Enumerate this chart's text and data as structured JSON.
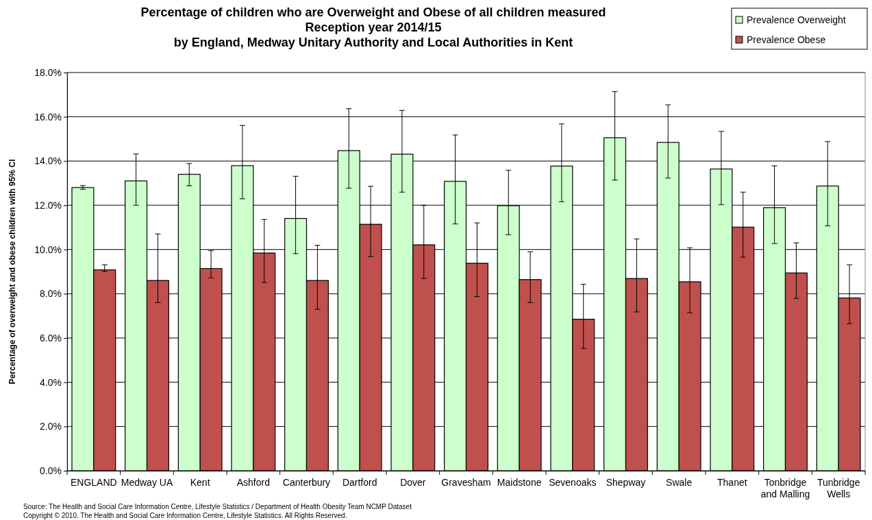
{
  "chart_data": {
    "type": "bar",
    "title": "Percentage of children who are Overweight and Obese of all children measured\nReception year 2014/15\nby England, Medway Unitary Authority and Local Authorities in Kent",
    "ylabel": "Percentage of overweight and obese children with 95% CI",
    "categories": [
      "ENGLAND",
      "Medway UA",
      "Kent",
      "Ashford",
      "Canterbury",
      "Dartford",
      "Dover",
      "Gravesham",
      "Maidstone",
      "Sevenoaks",
      "Shepway",
      "Swale",
      "Thanet",
      "Tonbridge and Malling",
      "Tunbridge Wells"
    ],
    "series": [
      {
        "name": "Prevalence Overweight",
        "color": "#ccffcc",
        "values": [
          12.8,
          13.1,
          13.4,
          13.79,
          11.4,
          14.47,
          14.31,
          13.08,
          11.98,
          13.77,
          15.05,
          14.84,
          13.64,
          11.89,
          12.87
        ],
        "errors": [
          [
            12.72,
            12.89
          ],
          [
            12.0,
            14.32
          ],
          [
            12.88,
            13.89
          ],
          [
            12.29,
            15.61
          ],
          [
            9.81,
            13.31
          ],
          [
            12.77,
            16.37
          ],
          [
            12.59,
            16.29
          ],
          [
            11.16,
            15.18
          ],
          [
            10.67,
            13.58
          ],
          [
            12.16,
            15.68
          ],
          [
            13.14,
            17.14
          ],
          [
            13.23,
            16.54
          ],
          [
            12.03,
            15.34
          ],
          [
            10.27,
            13.78
          ],
          [
            11.07,
            14.88
          ]
        ]
      },
      {
        "name": "Prevalence Obese",
        "color": "#c0504d",
        "values": [
          9.08,
          8.6,
          9.14,
          9.84,
          8.6,
          11.14,
          10.21,
          9.38,
          8.64,
          6.85,
          8.69,
          8.54,
          11.01,
          8.94,
          7.81
        ],
        "errors": [
          [
            9.01,
            9.31
          ],
          [
            7.6,
            10.7
          ],
          [
            8.72,
            9.95
          ],
          [
            8.51,
            11.36
          ],
          [
            7.3,
            10.19
          ],
          [
            9.68,
            12.86
          ],
          [
            8.69,
            12.0
          ],
          [
            7.87,
            11.2
          ],
          [
            7.6,
            9.9
          ],
          [
            5.53,
            8.43
          ],
          [
            7.18,
            10.48
          ],
          [
            7.14,
            10.08
          ],
          [
            9.65,
            12.59
          ],
          [
            7.79,
            10.3
          ],
          [
            6.65,
            9.31
          ]
        ]
      }
    ],
    "ylim": [
      0,
      18
    ],
    "yticks": [
      {
        "value": 0,
        "label": "0.0%"
      },
      {
        "value": 2,
        "label": "2.0%"
      },
      {
        "value": 4,
        "label": "4.0%"
      },
      {
        "value": 6,
        "label": "6.0%"
      },
      {
        "value": 8,
        "label": "8.0%"
      },
      {
        "value": 10,
        "label": "10.0%"
      },
      {
        "value": 12,
        "label": "12.0%"
      },
      {
        "value": 14,
        "label": "14.0%"
      },
      {
        "value": 16,
        "label": "16.0%"
      },
      {
        "value": 18,
        "label": "18.0%"
      }
    ],
    "grid": "y",
    "legend": "top right",
    "annotations": [
      "Source: The Health and Social Care Information Centre, Lifestyle Statistics / Department of Health Obesity Team NCMP Dataset",
      "Copyright © 2010. The Health and Social Care Information Centre, Lifestyle Statistics. All Rights Reserved."
    ]
  }
}
